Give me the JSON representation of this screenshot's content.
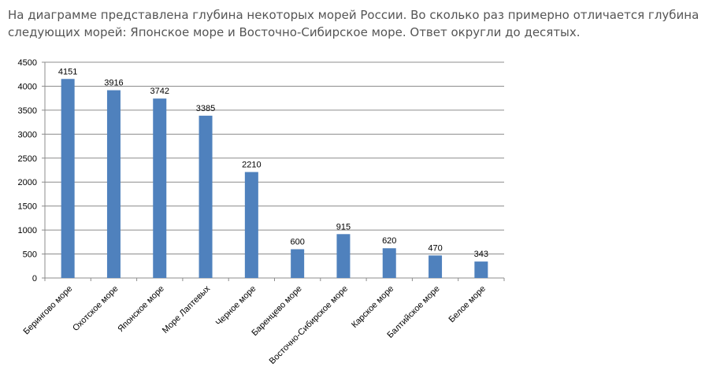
{
  "question": {
    "line1": "На диаграмме представлена глубина некоторых морей России. Во сколько раз примерно отличается  глубина",
    "line2": "следующих морей: Японское море и  Восточно-Сибирское море. Ответ округли до десятых."
  },
  "chart_data": {
    "type": "bar",
    "title": "",
    "xlabel": "",
    "ylabel": "",
    "ylim": [
      0,
      4500
    ],
    "yticks": [
      0,
      500,
      1000,
      1500,
      2000,
      2500,
      3000,
      3500,
      4000,
      4500
    ],
    "grid": true,
    "bar_color": "#4f81bd",
    "categories": [
      "Берингово море",
      "Охотское море",
      "Японское море",
      "Море Лаптевых",
      "Черное море",
      "Баренцево море",
      "Восточно-Сибирское море",
      "Карское море",
      "Балтийское море",
      "Белое море"
    ],
    "values": [
      4151,
      3916,
      3742,
      3385,
      2210,
      600,
      915,
      620,
      470,
      343
    ]
  }
}
